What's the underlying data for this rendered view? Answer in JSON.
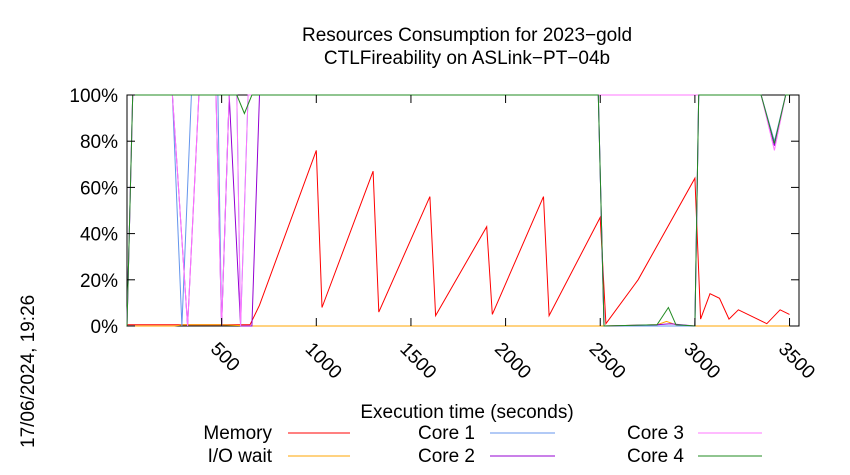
{
  "chart_data": {
    "type": "line",
    "title": "Resources Consumption for 2023−gold",
    "subtitle": "CTLFireability on ASLink−PT−04b",
    "xlabel": "Execution time (seconds)",
    "ylabel": "",
    "xlim": [
      0,
      3550
    ],
    "ylim": [
      0,
      100
    ],
    "x_ticks": [
      500,
      1000,
      1500,
      2000,
      2500,
      3000,
      3500
    ],
    "y_ticks": [
      0,
      20,
      40,
      60,
      80,
      100
    ],
    "y_tick_labels": [
      "0%",
      "20%",
      "40%",
      "60%",
      "80%",
      "100%"
    ],
    "grid": false,
    "legend_position": "bottom",
    "timestamp": "17/06/2024, 19:26",
    "series": [
      {
        "name": "Memory",
        "color": "#ff0000",
        "points": [
          [
            0,
            0.5
          ],
          [
            100,
            0.5
          ],
          [
            200,
            0.5
          ],
          [
            300,
            0.5
          ],
          [
            350,
            0.5
          ],
          [
            400,
            0.5
          ],
          [
            450,
            0.5
          ],
          [
            500,
            0.5
          ],
          [
            550,
            0.5
          ],
          [
            600,
            0.5
          ],
          [
            650,
            0.5
          ],
          [
            700,
            9
          ],
          [
            1000,
            76
          ],
          [
            1030,
            8
          ],
          [
            1300,
            67
          ],
          [
            1330,
            6
          ],
          [
            1600,
            56
          ],
          [
            1630,
            4.5
          ],
          [
            1900,
            43
          ],
          [
            1930,
            5
          ],
          [
            2200,
            56
          ],
          [
            2230,
            4.5
          ],
          [
            2500,
            47
          ],
          [
            2530,
            1
          ],
          [
            2700,
            20
          ],
          [
            3000,
            64
          ],
          [
            3030,
            3
          ],
          [
            3080,
            14
          ],
          [
            3130,
            12
          ],
          [
            3180,
            3
          ],
          [
            3230,
            7
          ],
          [
            3280,
            5
          ],
          [
            3330,
            3
          ],
          [
            3380,
            1
          ],
          [
            3450,
            7
          ],
          [
            3500,
            5
          ]
        ]
      },
      {
        "name": "I/O wait",
        "color": "#ffa500",
        "points": [
          [
            0,
            0
          ],
          [
            250,
            0
          ],
          [
            300,
            0.5
          ],
          [
            500,
            0.5
          ],
          [
            640,
            0
          ],
          [
            2500,
            0
          ],
          [
            2800,
            0.5
          ],
          [
            2850,
            2
          ],
          [
            2900,
            0.5
          ],
          [
            3000,
            0
          ],
          [
            3500,
            0
          ]
        ]
      },
      {
        "name": "Core 1",
        "color": "#6495ed",
        "points": [
          [
            0,
            0
          ],
          [
            30,
            100
          ],
          [
            240,
            100
          ],
          [
            290,
            0
          ],
          [
            340,
            100
          ],
          [
            480,
            100
          ],
          [
            500,
            0
          ],
          [
            540,
            100
          ],
          [
            580,
            100
          ],
          [
            600,
            0
          ],
          [
            640,
            100
          ],
          [
            2490,
            100
          ],
          [
            2520,
            0
          ],
          [
            2800,
            0
          ],
          [
            3000,
            0
          ],
          [
            3020,
            100
          ],
          [
            3350,
            100
          ],
          [
            3420,
            80
          ],
          [
            3480,
            100
          ],
          [
            3500,
            100
          ]
        ]
      },
      {
        "name": "Core 2",
        "color": "#9400d3",
        "points": [
          [
            0,
            0
          ],
          [
            30,
            100
          ],
          [
            240,
            100
          ],
          [
            320,
            0
          ],
          [
            380,
            100
          ],
          [
            470,
            100
          ],
          [
            500,
            0
          ],
          [
            540,
            100
          ],
          [
            600,
            0
          ],
          [
            660,
            0
          ],
          [
            700,
            100
          ],
          [
            2490,
            100
          ],
          [
            2520,
            0
          ],
          [
            2800,
            0.5
          ],
          [
            2870,
            1
          ],
          [
            3000,
            0
          ],
          [
            3020,
            100
          ],
          [
            3350,
            100
          ],
          [
            3420,
            78
          ],
          [
            3480,
            100
          ],
          [
            3500,
            100
          ]
        ]
      },
      {
        "name": "Core 3",
        "color": "#ff77ff",
        "points": [
          [
            0,
            0
          ],
          [
            30,
            100
          ],
          [
            240,
            100
          ],
          [
            320,
            0
          ],
          [
            380,
            100
          ],
          [
            470,
            100
          ],
          [
            500,
            0
          ],
          [
            540,
            100
          ],
          [
            580,
            100
          ],
          [
            600,
            0
          ],
          [
            640,
            100
          ],
          [
            2490,
            100
          ],
          [
            2520,
            100
          ],
          [
            2600,
            100
          ],
          [
            3000,
            100
          ],
          [
            3350,
            100
          ],
          [
            3420,
            76
          ],
          [
            3480,
            100
          ],
          [
            3500,
            100
          ]
        ]
      },
      {
        "name": "Core 4",
        "color": "#228b22",
        "points": [
          [
            0,
            0
          ],
          [
            30,
            100
          ],
          [
            580,
            100
          ],
          [
            620,
            92
          ],
          [
            660,
            100
          ],
          [
            2490,
            100
          ],
          [
            2520,
            0
          ],
          [
            2800,
            0.5
          ],
          [
            2860,
            8
          ],
          [
            2900,
            0.5
          ],
          [
            3000,
            0
          ],
          [
            3020,
            100
          ],
          [
            3350,
            100
          ],
          [
            3420,
            79
          ],
          [
            3480,
            100
          ],
          [
            3500,
            100
          ]
        ]
      }
    ]
  }
}
